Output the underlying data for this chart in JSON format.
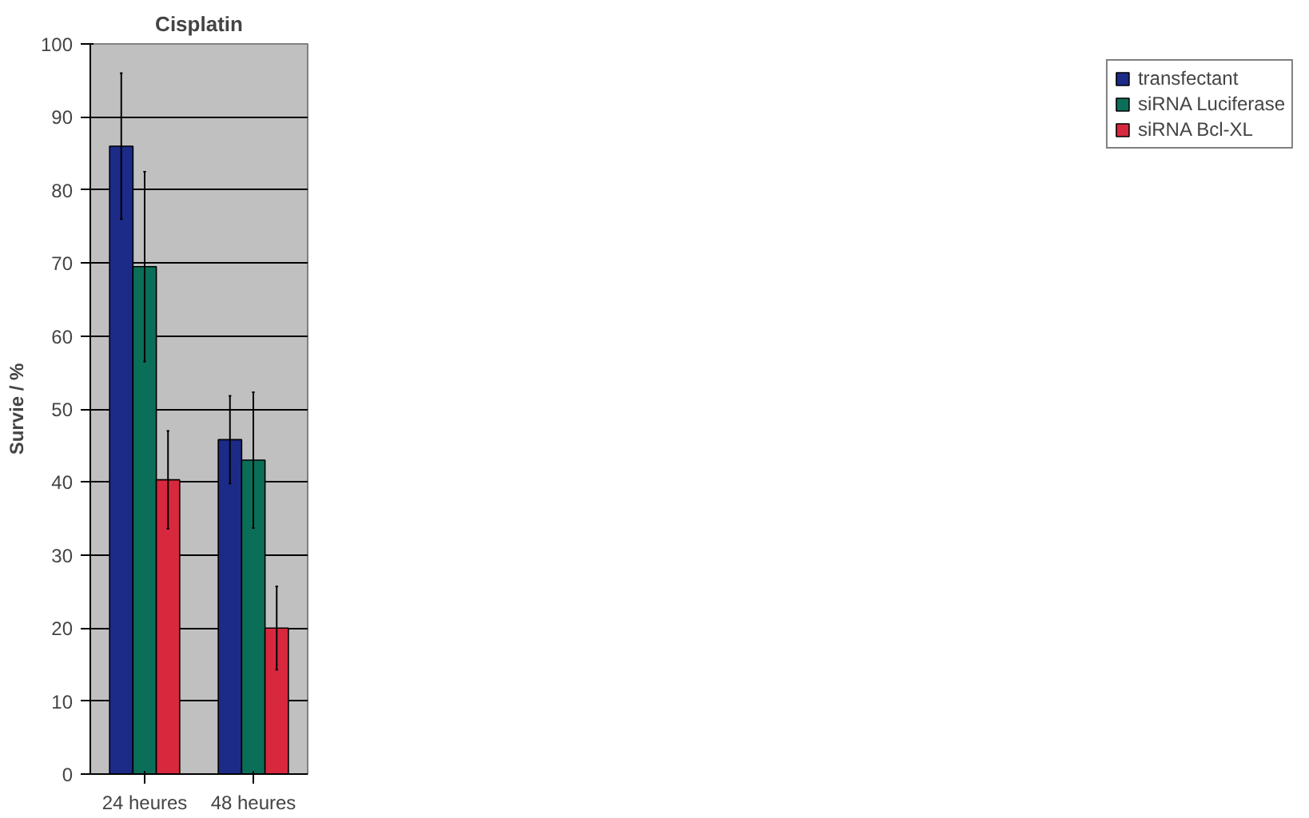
{
  "chart_data": {
    "type": "bar",
    "title": "Cisplatin",
    "ylabel": "Survie / %",
    "categories": [
      "24 heures",
      "48 heures"
    ],
    "series": [
      {
        "name": "transfectant",
        "color": "#1c2a88",
        "values": [
          86,
          45.8
        ],
        "errors": [
          10,
          6
        ]
      },
      {
        "name": "siRNA Luciferase",
        "color": "#0b6e58",
        "values": [
          69.5,
          43
        ],
        "errors": [
          13,
          9.3
        ]
      },
      {
        "name": "siRNA Bcl-XL",
        "color": "#d8283e",
        "values": [
          40.3,
          20
        ],
        "errors": [
          6.7,
          5.7
        ]
      }
    ],
    "ylim": [
      0,
      100
    ],
    "yticks": [
      0,
      10,
      20,
      30,
      40,
      50,
      60,
      70,
      80,
      90,
      100
    ],
    "grid": "y",
    "legend": "right"
  }
}
